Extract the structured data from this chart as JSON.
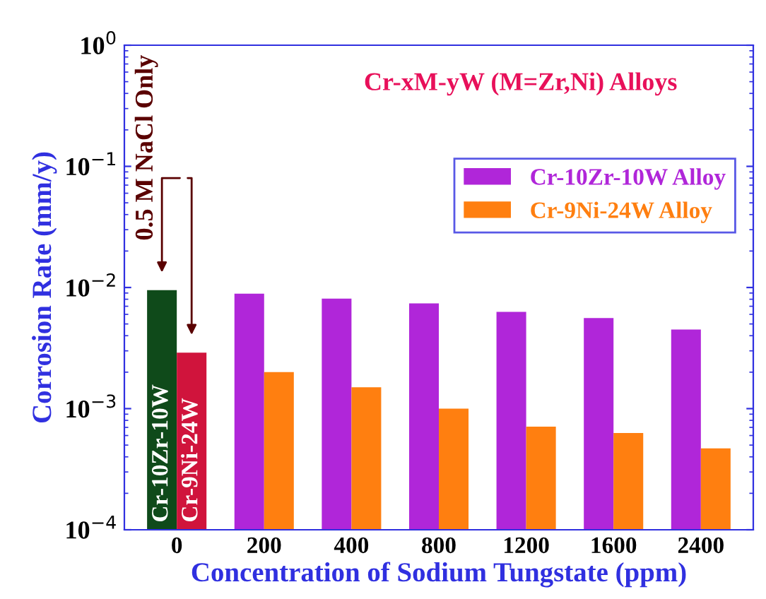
{
  "chart_data": {
    "type": "bar",
    "title": "Cr-xM-yW (M=Zr,Ni) Alloys",
    "xlabel": "Concentration of Sodium Tungstate (ppm)",
    "ylabel": "Corrosion Rate (mm/y)",
    "categories": [
      "0",
      "200",
      "400",
      "800",
      "1200",
      "1600",
      "2400"
    ],
    "series": [
      {
        "name": "Cr-10Zr-10W Alloy",
        "color": "#b026d9",
        "colors": [
          "#0f4a1a",
          "#b026d9",
          "#b026d9",
          "#b026d9",
          "#b026d9",
          "#b026d9",
          "#b026d9"
        ],
        "values": [
          0.0095,
          0.0089,
          0.0081,
          0.0074,
          0.0063,
          0.0056,
          0.0045
        ]
      },
      {
        "name": "Cr-9Ni-24W Alloy",
        "color": "#ff7f10",
        "colors": [
          "#d0143c",
          "#ff7f10",
          "#ff7f10",
          "#ff7f10",
          "#ff7f10",
          "#ff7f10",
          "#ff7f10"
        ],
        "values": [
          0.0029,
          0.002,
          0.0015,
          0.001,
          0.00071,
          0.00063,
          0.00047
        ]
      }
    ],
    "log": "y",
    "ylim": [
      0.0001,
      1
    ],
    "yticks": [
      {
        "value": 0.0001,
        "label": "10$^{−4}$"
      },
      {
        "value": 0.001,
        "label": "10$^{−3}$"
      },
      {
        "value": 0.01,
        "label": "10$^{−2}$"
      },
      {
        "value": 0.1,
        "label": "10$^{−1}$"
      },
      {
        "value": 1,
        "label": "10$^{0}$"
      }
    ],
    "legend": "top right",
    "grid": false,
    "annotations": [
      {
        "text": "Cr-10Zr-10W",
        "x": "0",
        "y": 0.0001
      },
      {
        "text": "Cr-9Ni-24W",
        "x": "0",
        "y": 0.0001
      },
      "0.5 M NaCl Only"
    ]
  }
}
